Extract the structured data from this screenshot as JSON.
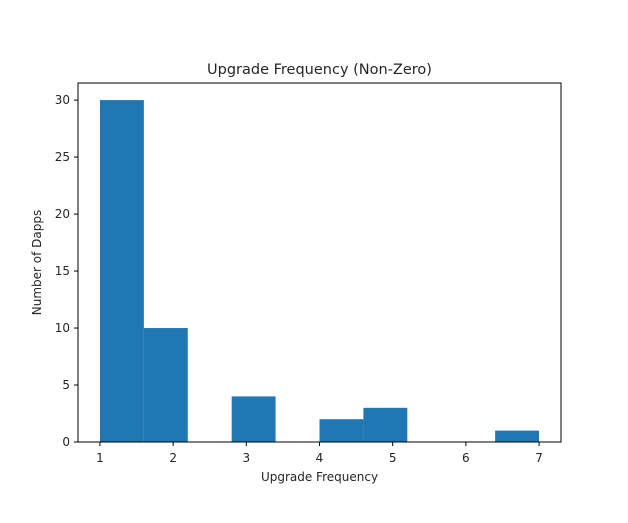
{
  "chart_data": {
    "type": "bar",
    "title": "Upgrade Frequency (Non-Zero)",
    "xlabel": "Upgrade Frequency",
    "ylabel": "Number of Dapps",
    "xlim": [
      0.7,
      7.3
    ],
    "ylim": [
      0,
      31.5
    ],
    "xticks": [
      1,
      2,
      3,
      4,
      5,
      6,
      7
    ],
    "yticks": [
      0,
      5,
      10,
      15,
      20,
      25,
      30
    ],
    "bins": [
      {
        "x0": 1.0,
        "x1": 1.6,
        "value": 30
      },
      {
        "x0": 1.6,
        "x1": 2.2,
        "value": 10
      },
      {
        "x0": 2.2,
        "x1": 2.8,
        "value": 0
      },
      {
        "x0": 2.8,
        "x1": 3.4,
        "value": 4
      },
      {
        "x0": 3.4,
        "x1": 4.0,
        "value": 0
      },
      {
        "x0": 4.0,
        "x1": 4.6,
        "value": 2
      },
      {
        "x0": 4.6,
        "x1": 5.2,
        "value": 3
      },
      {
        "x0": 5.2,
        "x1": 5.8,
        "value": 0
      },
      {
        "x0": 5.8,
        "x1": 6.4,
        "value": 0
      },
      {
        "x0": 6.4,
        "x1": 7.0,
        "value": 1
      }
    ],
    "bar_color": "#1f77b4",
    "grid": false,
    "legend": "none"
  }
}
